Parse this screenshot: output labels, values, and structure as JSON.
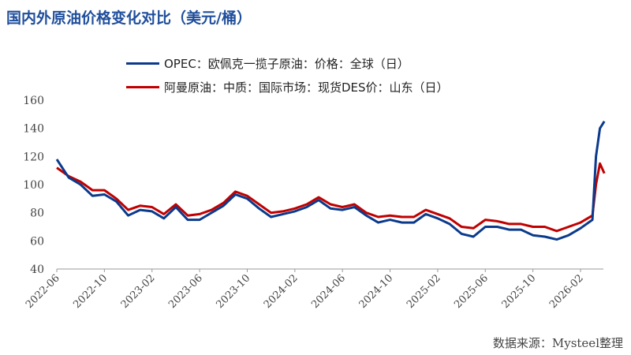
{
  "title": "国内外原油价格变化对比（美元/桶）",
  "source": "数据来源：Mysteel整理",
  "chart_data": {
    "type": "line",
    "title": "国内外原油价格变化对比（美元/桶）",
    "ylim": [
      40,
      160
    ],
    "yticks": [
      40,
      60,
      80,
      100,
      120,
      140,
      160
    ],
    "xticks": [
      "2022-06",
      "2022-10",
      "2023-02",
      "2023-06",
      "2023-10",
      "2024-02",
      "2024-06",
      "2024-10",
      "2025-02",
      "2025-06",
      "2025-10",
      "2026-02"
    ],
    "grid": false,
    "legend": "top",
    "x": [
      "2022-06",
      "2022-07",
      "2022-08",
      "2022-09",
      "2022-10",
      "2022-11",
      "2022-12",
      "2023-01",
      "2023-02",
      "2023-03",
      "2023-04",
      "2023-05",
      "2023-06",
      "2023-07",
      "2023-08",
      "2023-09",
      "2023-10",
      "2023-11",
      "2023-12",
      "2024-01",
      "2024-02",
      "2024-03",
      "2024-04",
      "2024-05",
      "2024-06",
      "2024-07",
      "2024-08",
      "2024-09",
      "2024-10",
      "2024-11",
      "2024-12",
      "2025-01",
      "2025-02",
      "2025-03",
      "2025-04",
      "2025-05",
      "2025-06",
      "2025-07",
      "2025-08",
      "2025-09",
      "2025-10",
      "2025-11",
      "2025-12",
      "2026-01",
      "2026-02",
      "2026-03-01",
      "2026-03-10",
      "2026-03-20",
      "2026-03-31"
    ],
    "series": [
      {
        "name": "OPEC：欧佩克一揽子原油：价格：全球（日）",
        "color": "#0b3a8c",
        "values": [
          118,
          105,
          100,
          92,
          93,
          88,
          78,
          82,
          81,
          76,
          84,
          75,
          75,
          80,
          85,
          93,
          90,
          83,
          77,
          79,
          81,
          84,
          89,
          83,
          82,
          84,
          78,
          73,
          75,
          73,
          73,
          79,
          76,
          72,
          65,
          63,
          70,
          70,
          68,
          68,
          64,
          63,
          61,
          64,
          69,
          75,
          120,
          140,
          145
        ]
      },
      {
        "name": "阿曼原油：中质：国际市场：现货DES价：山东（日）",
        "color": "#c00000",
        "values": [
          112,
          106,
          102,
          96,
          96,
          90,
          82,
          85,
          84,
          79,
          86,
          78,
          79,
          82,
          87,
          95,
          92,
          86,
          80,
          81,
          83,
          86,
          91,
          86,
          84,
          86,
          80,
          77,
          78,
          77,
          77,
          82,
          79,
          76,
          70,
          69,
          75,
          74,
          72,
          72,
          70,
          70,
          67,
          70,
          73,
          78,
          100,
          115,
          108
        ]
      }
    ]
  }
}
